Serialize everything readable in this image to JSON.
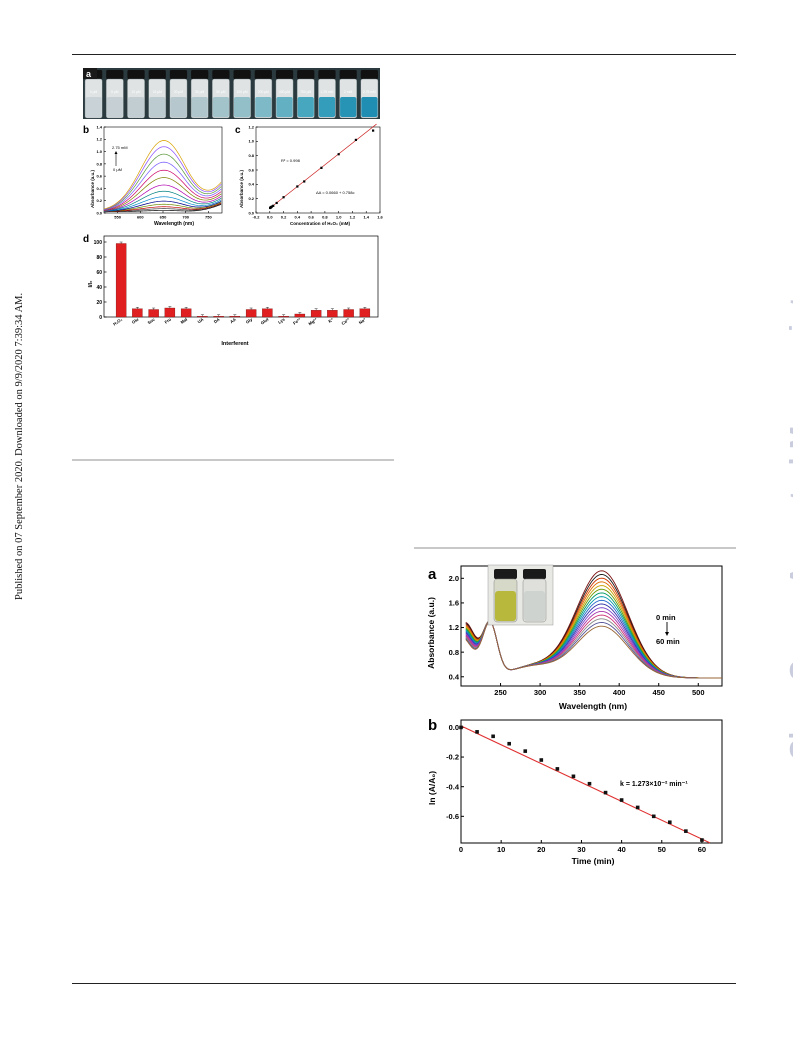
{
  "side_note": "Published on 07 September 2020. Downloaded on 9/9/2020 7:39:34 AM.",
  "watermark": "ChemComm Accepted Manuscript",
  "colors": {
    "bar": "#e02020",
    "fit_line": "#e03030",
    "watermark": "#c9cdde"
  },
  "figure_left": {
    "panel_a": {
      "label": "a",
      "vial_labels": [
        "0 μM",
        "5 μM",
        "10 μM",
        "15 μM",
        "20 μM",
        "30 μM",
        "50 μM",
        "100 μM",
        "200 μM",
        "400 μM",
        "750 μM",
        "1.25 mM",
        "2 mM",
        "2.75 mM"
      ],
      "vial_colors": [
        "#c9d2d6",
        "#c6d0d4",
        "#c2cdd2",
        "#bccbd0",
        "#b6c8ce",
        "#aec6cc",
        "#a3c3ca",
        "#92bfc8",
        "#7db9c6",
        "#62b0c2",
        "#47a7bf",
        "#339dbb",
        "#2794b6",
        "#1f8eb2"
      ]
    },
    "panel_b": {
      "label": "b",
      "annot_top": "2.75 mM",
      "annot_bottom": "0 μM",
      "chart_data": {
        "type": "line",
        "xlabel": "Wavelength (nm)",
        "ylabel": "Absorbance (a.u.)",
        "xlim": [
          520,
          780
        ],
        "ylim": [
          0,
          1.4
        ],
        "xticks": [
          550,
          600,
          650,
          700,
          750
        ],
        "yticks": [
          0.0,
          0.2,
          0.4,
          0.6,
          0.8,
          1.0,
          1.2,
          1.4
        ],
        "series_peak_values": [
          0.02,
          0.05,
          0.08,
          0.12,
          0.17,
          0.24,
          0.33,
          0.43,
          0.55,
          0.67,
          0.8,
          0.93,
          1.05,
          1.15
        ],
        "series_colors": [
          "#000000",
          "#444444",
          "#c00000",
          "#6a8a00",
          "#00008b",
          "#0088cc",
          "#008080",
          "#b000b0",
          "#808000",
          "#cc0066",
          "#7a5cff",
          "#5a9a3a",
          "#8a4aff",
          "#d8a000"
        ]
      }
    },
    "panel_c": {
      "label": "c",
      "r2_label": "R² = 0.998",
      "eq_label": "ΔA = 0.0660 + 0.758c",
      "chart_data": {
        "type": "scatter",
        "xlabel": "Concentration of H₂O₂ (mM)",
        "ylabel": "Absorbance (a.u.)",
        "xlim": [
          -0.2,
          1.6
        ],
        "ylim": [
          0.0,
          1.2
        ],
        "xticks": [
          -0.2,
          0.0,
          0.2,
          0.4,
          0.6,
          0.8,
          1.0,
          1.2,
          1.4,
          1.6
        ],
        "yticks": [
          0.0,
          0.2,
          0.4,
          0.6,
          0.8,
          1.0,
          1.2
        ],
        "x": [
          0.005,
          0.01,
          0.015,
          0.02,
          0.03,
          0.05,
          0.1,
          0.2,
          0.4,
          0.5,
          0.75,
          1.0,
          1.25,
          1.5
        ],
        "y": [
          0.07,
          0.075,
          0.08,
          0.082,
          0.09,
          0.1,
          0.14,
          0.22,
          0.37,
          0.44,
          0.63,
          0.82,
          1.02,
          1.15
        ],
        "fit": {
          "intercept": 0.066,
          "slope": 0.758
        }
      }
    },
    "panel_d": {
      "label": "d",
      "chart_data": {
        "type": "bar",
        "xlabel": "Interferent",
        "ylabel": "I/I₀",
        "ylim": [
          0,
          100
        ],
        "yticks": [
          0,
          20,
          40,
          60,
          80,
          100
        ],
        "categories": [
          "H₂O₂",
          "Glu",
          "Suc",
          "Fru",
          "Mal",
          "UA",
          "DA",
          "AA",
          "Gly",
          "Glut",
          "Lys",
          "Fe³⁺",
          "Mg²⁺",
          "K⁺",
          "Ca²⁺",
          "Na⁺"
        ],
        "values": [
          98,
          11,
          10,
          12,
          11,
          1,
          1,
          1,
          10,
          11,
          1,
          4,
          9,
          9,
          10,
          11
        ]
      }
    }
  },
  "figure_right": {
    "panel_a": {
      "label": "a",
      "annot_start": "0 min",
      "annot_end": "60 min",
      "chart_data": {
        "type": "line",
        "xlabel": "Wavelength (nm)",
        "ylabel": "Absorbance (a.u.)",
        "xlim": [
          200,
          530
        ],
        "ylim": [
          0.25,
          2.2
        ],
        "xticks": [
          250,
          300,
          350,
          400,
          450,
          500
        ],
        "yticks": [
          0.4,
          0.8,
          1.2,
          1.6,
          2.0
        ],
        "series_peak_values": [
          2.12,
          2.06,
          2.0,
          1.94,
          1.88,
          1.82,
          1.76,
          1.7,
          1.64,
          1.58,
          1.52,
          1.46,
          1.4,
          1.34,
          1.28,
          1.22
        ],
        "series_colors": [
          "#7a1010",
          "#1a1a1a",
          "#cc3300",
          "#e06a00",
          "#c8a000",
          "#6a9a00",
          "#009966",
          "#0099aa",
          "#2266cc",
          "#3333aa",
          "#7744cc",
          "#aa33aa",
          "#cc3377",
          "#888888",
          "#555599",
          "#996633"
        ]
      }
    },
    "panel_b": {
      "label": "b",
      "k_label": "k = 1.273×10⁻² min⁻¹",
      "chart_data": {
        "type": "scatter",
        "xlabel": "Time (min)",
        "ylabel": "ln (A/A₀)",
        "xlim": [
          0,
          65
        ],
        "ylim": [
          -0.78,
          0.05
        ],
        "xticks": [
          0,
          10,
          20,
          30,
          40,
          50,
          60
        ],
        "yticks": [
          0.0,
          -0.2,
          -0.4,
          -0.6
        ],
        "x": [
          0,
          4,
          8,
          12,
          16,
          20,
          24,
          28,
          32,
          36,
          40,
          44,
          48,
          52,
          56,
          60
        ],
        "y": [
          0.0,
          -0.03,
          -0.06,
          -0.11,
          -0.16,
          -0.22,
          -0.28,
          -0.33,
          -0.38,
          -0.44,
          -0.49,
          -0.54,
          -0.6,
          -0.64,
          -0.7,
          -0.76
        ],
        "fit": {
          "intercept": 0.01,
          "slope": -0.01273
        }
      }
    }
  }
}
